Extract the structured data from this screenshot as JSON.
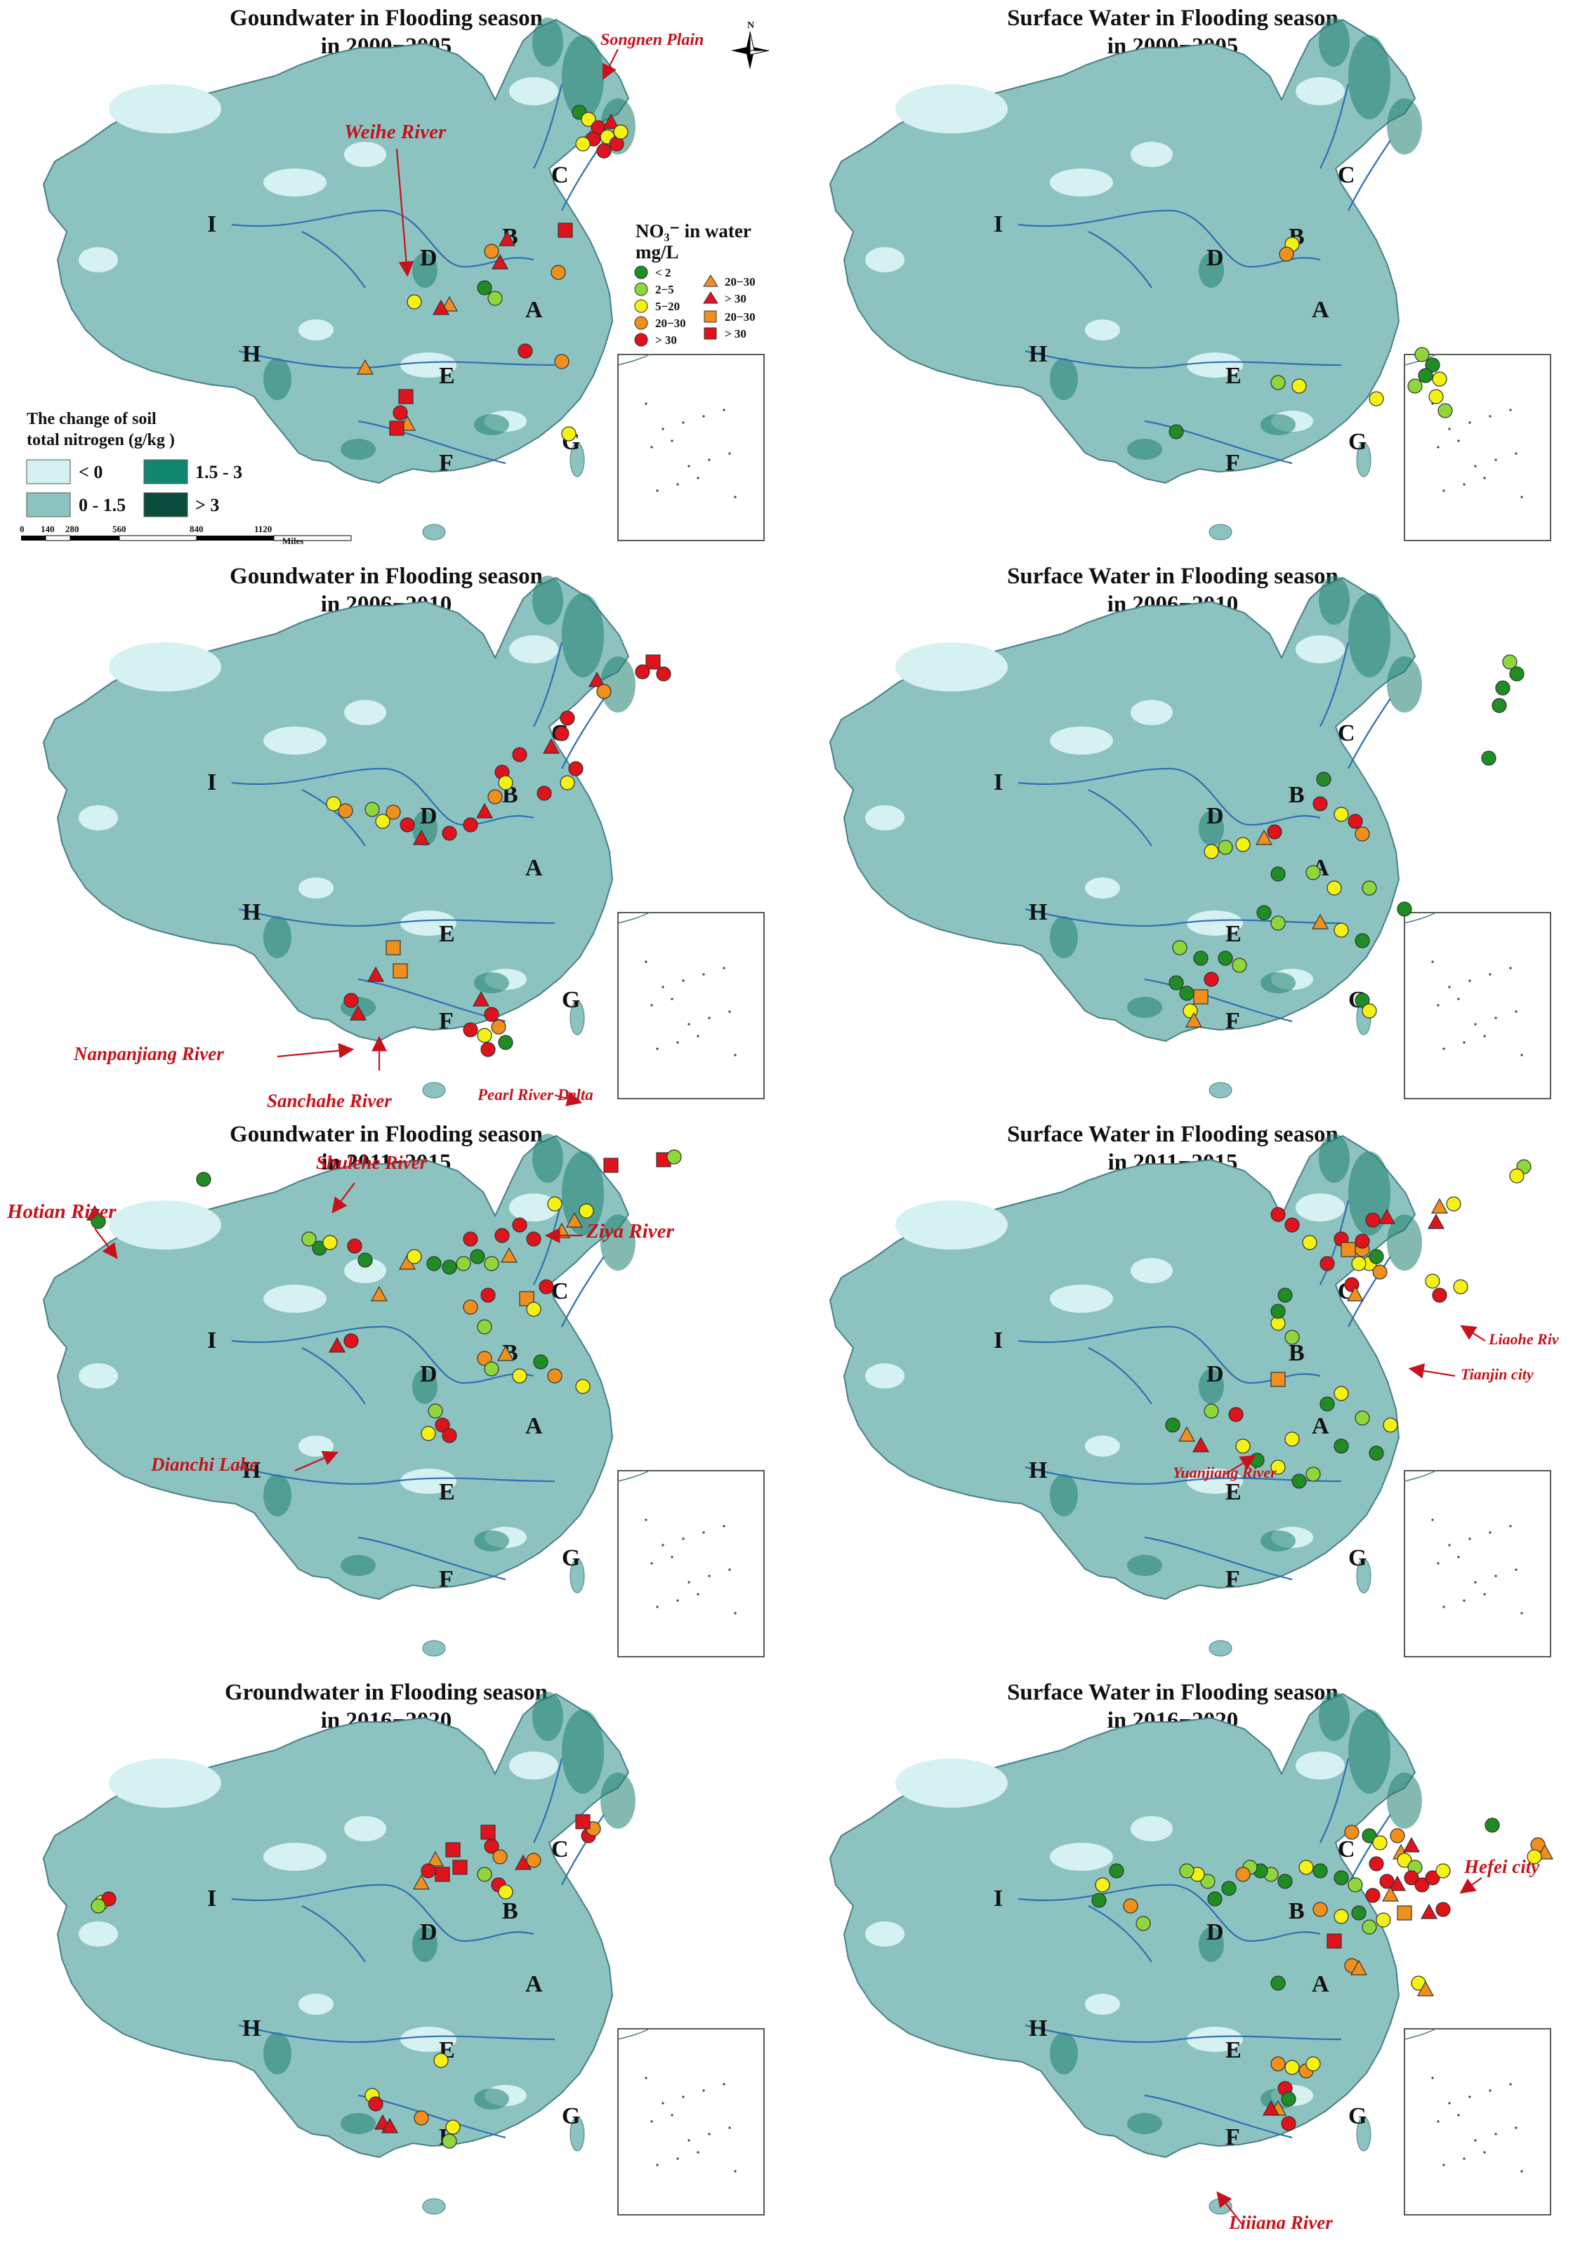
{
  "colors": {
    "land": "#8cc3c1",
    "land_light": "#d6f1f1",
    "land_dark": "#1f7f70",
    "river": "#2f6fb3",
    "annotation": "#c8121b",
    "class_lt2": "#1e8e24",
    "class_2_5": "#8fd63a",
    "class_5_20": "#f5f213",
    "class_20_30": "#f0901c",
    "class_gt30": "#e0121b"
  },
  "region_labels": [
    "A",
    "B",
    "C",
    "D",
    "E",
    "F",
    "G",
    "H",
    "I"
  ],
  "panels": [
    {
      "id": "gw-2000",
      "line1": "Goundwater in Flooding season",
      "line2": "in 2000−2005",
      "annotations": [
        "Songnen Plain",
        "Weihe River"
      ]
    },
    {
      "id": "sw-2000",
      "line1": "Surface Water in Flooding season",
      "line2": "in 2000−2005",
      "annotations": []
    },
    {
      "id": "gw-2006",
      "line1": "Goundwater in Flooding season",
      "line2": "in 2006−2010",
      "annotations": [
        "Nanpanjiang River",
        "Sanchahe River",
        "Pearl River Delta"
      ]
    },
    {
      "id": "sw-2006",
      "line1": "Surface Water in Flooding season",
      "line2": "in 2006−2010",
      "annotations": []
    },
    {
      "id": "gw-2011",
      "line1": "Goundwater in Flooding season",
      "line2": "in 2011−2015",
      "annotations": [
        "Hotian River",
        "Shulehe River",
        "Ziya River",
        "Dianchi Lake"
      ]
    },
    {
      "id": "sw-2011",
      "line1": "Surface Water in Flooding season",
      "line2": "in 2011−2015",
      "annotations": [
        "Liaohe River",
        "Tianjin city",
        "Yuanjiang River"
      ]
    },
    {
      "id": "gw-2016",
      "line1": "Groundwater in Flooding season",
      "line2": "in 2016−2020",
      "annotations": []
    },
    {
      "id": "sw-2016",
      "line1": "Surface Water in Flooding season",
      "line2": "in 2016−2020",
      "annotations": [
        "Hefei city",
        "Lijiang River"
      ]
    }
  ],
  "legend_soil": {
    "title_line1": "The change of soil",
    "title_line2": "total nitrogen (g/kg )",
    "items": [
      {
        "label": "< 0",
        "color": "#d6f1f1"
      },
      {
        "label": "1.5 - 3",
        "color": "#11876f"
      },
      {
        "label": "0 - 1.5",
        "color": "#8cc3c1"
      },
      {
        "label": "> 3",
        "color": "#0b4d3c"
      }
    ]
  },
  "legend_no3": {
    "title_line1": "NO₃⁻ in water",
    "title_line2": "mg/L",
    "circles": [
      "< 2",
      "2−5",
      "5−20",
      "20−30",
      "> 30"
    ],
    "triangles": [
      "20−30",
      "> 30"
    ],
    "squares": [
      "20−30",
      "> 30"
    ]
  },
  "scale_bar": {
    "ticks": [
      "0",
      "140",
      "280",
      "560",
      "840",
      "1120"
    ],
    "unit": "Miles"
  },
  "north_label": "N"
}
